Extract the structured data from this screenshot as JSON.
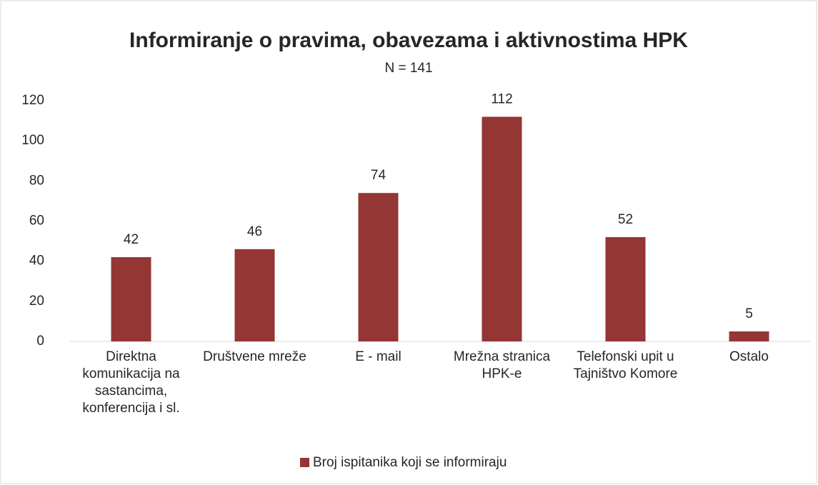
{
  "chart_data": {
    "type": "bar",
    "title": "Informiranje o pravima, obavezama i aktivnostima HPK",
    "subtitle": "N = 141",
    "categories": [
      "Direktna komunikacija na sastancima, konferencija i sl.",
      "Društvene mreže",
      "E - mail",
      "Mrežna stranica HPK-e",
      "Telefonski upit u Tajništvo Komore",
      "Ostalo"
    ],
    "series": [
      {
        "name": "Broj ispitanika koji se informiraju",
        "color": "#943634",
        "values": [
          42,
          46,
          74,
          112,
          52,
          5
        ]
      }
    ],
    "ylim": [
      0,
      120
    ],
    "yticks": [
      0,
      20,
      40,
      60,
      80,
      100,
      120
    ],
    "grid": false,
    "legend": "bottom"
  }
}
